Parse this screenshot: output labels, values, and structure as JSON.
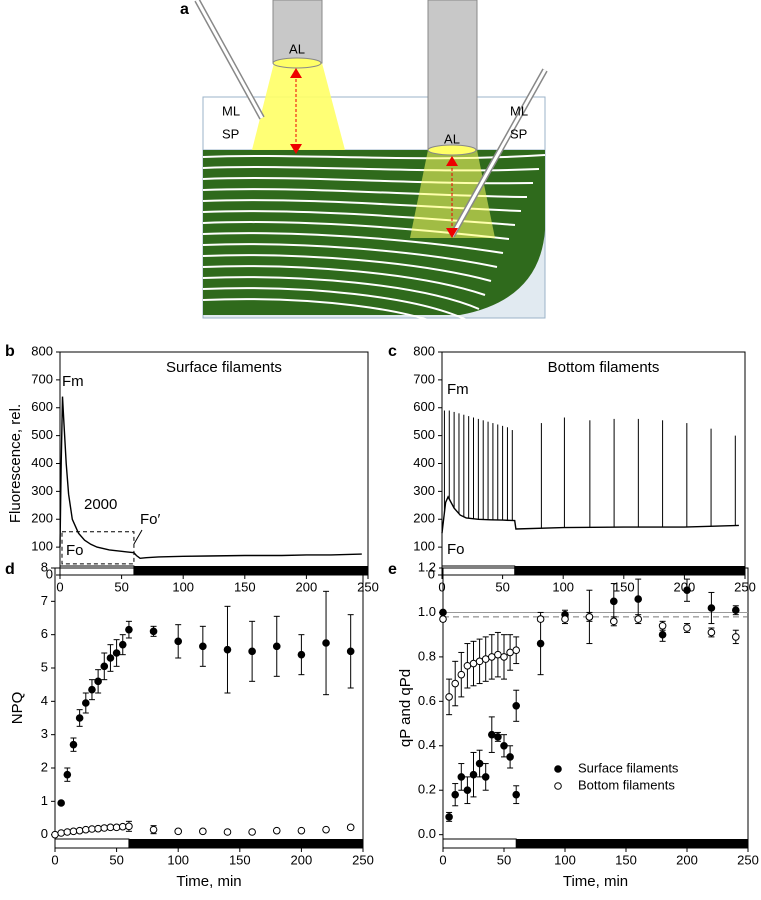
{
  "diagram": {
    "panel_label": "a",
    "cylinder_left": "AL",
    "cylinder_right": "AL",
    "left_ml": "ML",
    "left_sp": "SP",
    "right_ml": "ML",
    "right_sp": "SP"
  },
  "chart_data": [
    {
      "type": "line",
      "panel_label": "b",
      "title": "Surface filaments",
      "y_label": "Fluorescence, rel.",
      "color": "#000000",
      "x": [
        0,
        1,
        2,
        3,
        5,
        7,
        10,
        15,
        20,
        25,
        30,
        40,
        50,
        60,
        62,
        65,
        70,
        80,
        100,
        120,
        150,
        180,
        200,
        220,
        245
      ],
      "values": [
        100,
        400,
        640,
        560,
        400,
        290,
        200,
        150,
        125,
        110,
        100,
        90,
        85,
        80,
        70,
        60,
        62,
        65,
        67,
        68,
        70,
        70,
        72,
        72,
        75
      ],
      "annotations": [
        "Fm",
        "Fo",
        "2000",
        "Fo′"
      ],
      "xlim": [
        0,
        250
      ],
      "xticks": [
        0,
        50,
        100,
        150,
        200,
        250
      ],
      "ylim": [
        0,
        800
      ],
      "yticks": [
        0,
        100,
        200,
        300,
        400,
        500,
        600,
        700,
        800
      ],
      "light_period": [
        0,
        60
      ],
      "dark_period": [
        60,
        250
      ]
    },
    {
      "type": "line",
      "panel_label": "c",
      "title": "Bottom filaments",
      "color": "#000000",
      "x": [
        0,
        3,
        5,
        10,
        15,
        20,
        30,
        40,
        50,
        60,
        61,
        100,
        150,
        200,
        245
      ],
      "values": [
        150,
        260,
        280,
        240,
        215,
        205,
        200,
        198,
        197,
        195,
        165,
        170,
        172,
        172,
        178
      ],
      "spikes_x": [
        2,
        6,
        10,
        14,
        18,
        22,
        26,
        30,
        34,
        38,
        42,
        46,
        50,
        54,
        58,
        82,
        101,
        122,
        142,
        162,
        182,
        202,
        222,
        242
      ],
      "spikes_values": [
        590,
        590,
        585,
        580,
        575,
        570,
        565,
        560,
        555,
        550,
        545,
        540,
        535,
        530,
        520,
        545,
        565,
        555,
        560,
        560,
        555,
        545,
        525,
        500
      ],
      "annotations": [
        "Fm",
        "Fo"
      ],
      "xlim": [
        0,
        250
      ],
      "xticks": [
        0,
        50,
        100,
        150,
        200,
        250
      ],
      "ylim": [
        0,
        800
      ],
      "yticks": [
        0,
        100,
        200,
        300,
        400,
        500,
        600,
        700,
        800
      ],
      "light_period": [
        0,
        60
      ],
      "dark_period": [
        60,
        250
      ]
    },
    {
      "type": "scatter",
      "panel_label": "d",
      "y_label": "NPQ",
      "x_label": "Time, min",
      "series": [
        {
          "marker": "filled",
          "x": [
            5,
            10,
            15,
            20,
            25,
            30,
            35,
            40,
            45,
            50,
            55,
            60,
            80,
            100,
            120,
            140,
            160,
            180,
            200,
            220,
            240
          ],
          "values": [
            0.95,
            1.8,
            2.7,
            3.5,
            3.95,
            4.35,
            4.6,
            5.05,
            5.3,
            5.45,
            5.7,
            6.15,
            6.1,
            5.8,
            5.65,
            5.55,
            5.5,
            5.65,
            5.4,
            5.75,
            5.5
          ],
          "errors": [
            0.05,
            0.2,
            0.2,
            0.25,
            0.3,
            0.3,
            0.35,
            0.4,
            0.4,
            0.4,
            0.3,
            0.25,
            0.15,
            0.5,
            0.6,
            1.3,
            0.9,
            0.9,
            0.6,
            1.55,
            1.1
          ]
        },
        {
          "marker": "open",
          "x": [
            0,
            5,
            10,
            15,
            20,
            25,
            30,
            35,
            40,
            45,
            50,
            55,
            60,
            80,
            100,
            120,
            140,
            160,
            180,
            200,
            220,
            240
          ],
          "values": [
            0,
            0.05,
            0.08,
            0.1,
            0.12,
            0.15,
            0.17,
            0.18,
            0.2,
            0.22,
            0.22,
            0.24,
            0.25,
            0.15,
            0.1,
            0.1,
            0.08,
            0.08,
            0.12,
            0.12,
            0.15,
            0.22
          ],
          "errors": [
            0.02,
            0.03,
            0.03,
            0.03,
            0.04,
            0.04,
            0.04,
            0.05,
            0.05,
            0.05,
            0.05,
            0.05,
            0.15,
            0.12,
            0.05,
            0.05,
            0.05,
            0.05,
            0.05,
            0.05,
            0.05,
            0.05
          ]
        }
      ],
      "xlim": [
        0,
        250
      ],
      "xticks": [
        0,
        50,
        100,
        150,
        200,
        250
      ],
      "ylim": [
        -0.4,
        8
      ],
      "yticks": [
        0,
        1,
        2,
        3,
        4,
        5,
        6,
        7,
        8
      ],
      "light_period": [
        0,
        60
      ],
      "dark_period": [
        60,
        250
      ]
    },
    {
      "type": "scatter",
      "panel_label": "e",
      "y_label": "qP and qPd",
      "x_label": "Time, min",
      "legend": "lower right",
      "hlines": [
        {
          "value": 1.0,
          "style": "solid"
        },
        {
          "value": 0.98,
          "style": "dashed"
        }
      ],
      "series": [
        {
          "name": "Surface filaments",
          "marker": "filled",
          "x": [
            0,
            5,
            10,
            15,
            20,
            25,
            30,
            35,
            40,
            45,
            50,
            55,
            60,
            60,
            80,
            100,
            120,
            140,
            160,
            180,
            200,
            220,
            240
          ],
          "values": [
            1.0,
            0.08,
            0.18,
            0.26,
            0.2,
            0.27,
            0.32,
            0.26,
            0.45,
            0.44,
            0.4,
            0.35,
            0.58,
            0.18,
            0.86,
            0.99,
            0.98,
            1.05,
            1.06,
            0.9,
            1.1,
            1.02,
            1.01
          ],
          "errors": [
            0,
            0.02,
            0.05,
            0.06,
            0.06,
            0.1,
            0.06,
            0.06,
            0.08,
            0.02,
            0.05,
            0.05,
            0.07,
            0.04,
            0.14,
            0.02,
            0.12,
            0.08,
            0.09,
            0.03,
            0.05,
            0.07,
            0.02
          ]
        },
        {
          "name": "Bottom filaments",
          "marker": "open",
          "x": [
            0,
            5,
            10,
            15,
            20,
            25,
            30,
            35,
            40,
            45,
            50,
            55,
            60,
            80,
            100,
            120,
            140,
            160,
            180,
            200,
            220,
            240
          ],
          "values": [
            0.97,
            0.62,
            0.68,
            0.72,
            0.76,
            0.77,
            0.78,
            0.79,
            0.8,
            0.81,
            0.8,
            0.82,
            0.83,
            0.97,
            0.97,
            0.98,
            0.96,
            0.97,
            0.94,
            0.93,
            0.91,
            0.89
          ],
          "errors": [
            0.01,
            0.08,
            0.1,
            0.1,
            0.1,
            0.1,
            0.1,
            0.1,
            0.1,
            0.1,
            0.1,
            0.08,
            0.06,
            0.01,
            0.02,
            0.02,
            0.02,
            0.02,
            0.02,
            0.02,
            0.02,
            0.03
          ]
        }
      ],
      "xlim": [
        0,
        250
      ],
      "xticks": [
        0,
        50,
        100,
        150,
        200,
        250
      ],
      "ylim": [
        -0.06,
        1.2
      ],
      "yticks": [
        {
          "value": 0,
          "label": "0.0"
        },
        0.2,
        0.4,
        0.6,
        0.8,
        {
          "value": 1,
          "label": "1.0"
        },
        1.2
      ],
      "light_period": [
        0,
        60
      ],
      "dark_period": [
        60,
        250
      ]
    }
  ]
}
